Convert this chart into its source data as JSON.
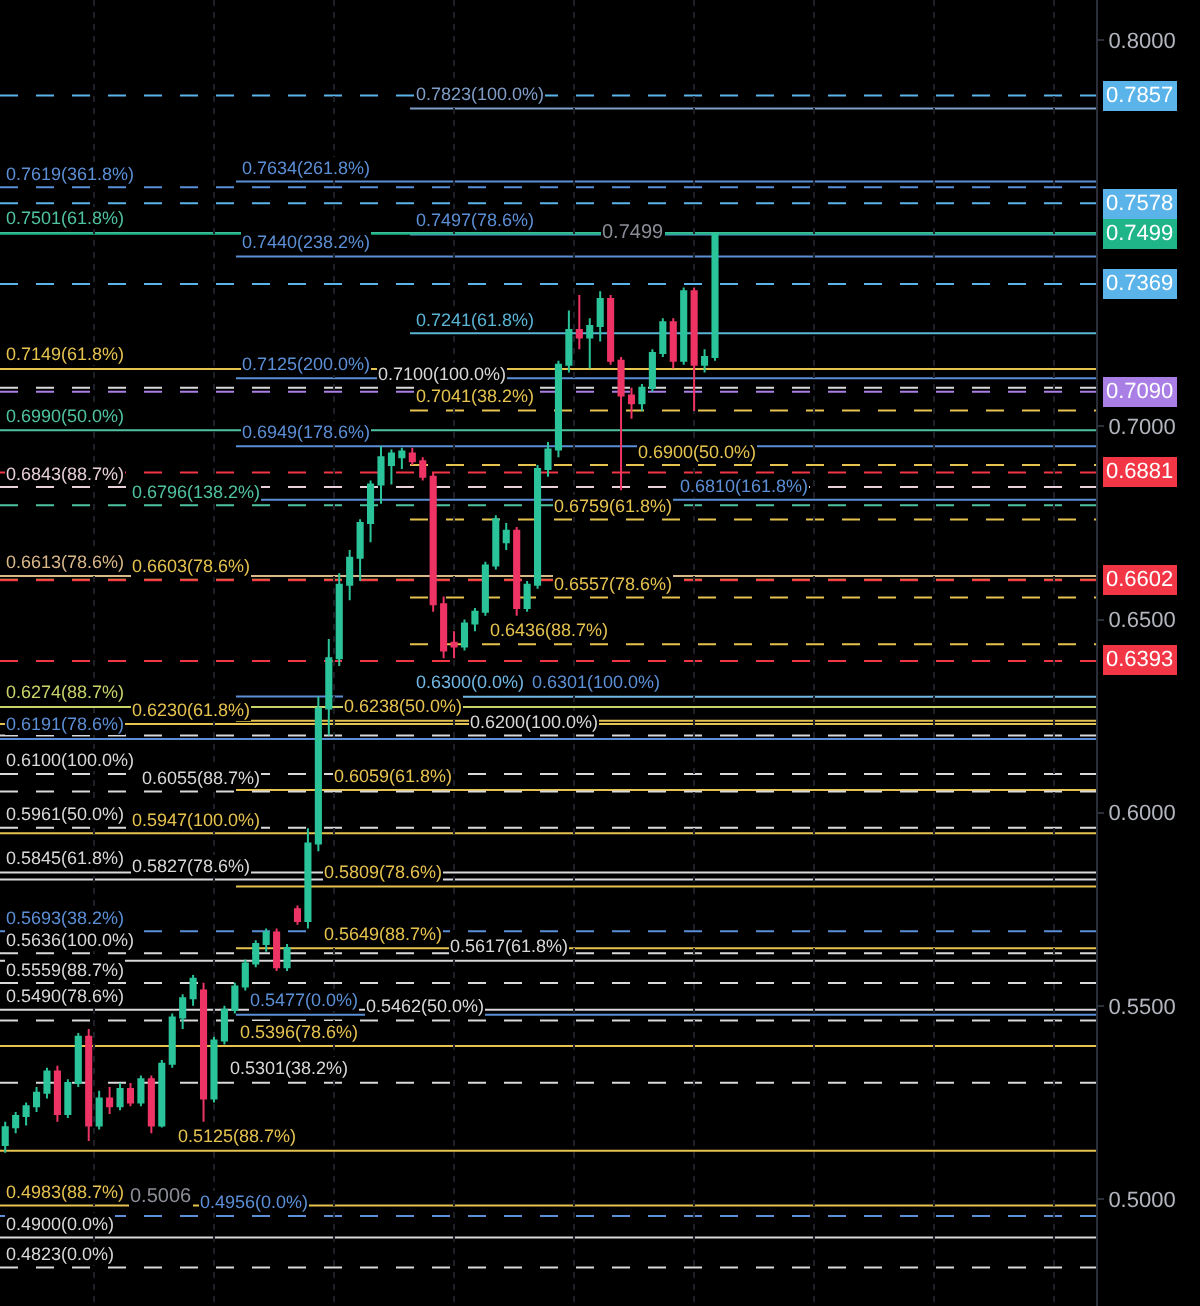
{
  "chart_data": {
    "type": "candlestick",
    "categories": [
      null,
      null,
      null,
      null,
      null,
      null,
      null,
      null,
      null,
      null,
      null,
      null,
      null,
      null,
      null,
      null,
      null,
      null,
      null,
      null,
      null,
      null,
      null,
      null,
      null,
      null,
      null,
      null,
      null,
      null,
      null,
      null,
      null,
      null,
      null,
      null,
      null,
      null,
      null,
      null,
      null,
      null,
      null,
      null,
      null,
      null,
      null,
      null,
      null,
      null,
      null,
      null,
      null,
      null,
      null,
      null,
      null,
      null,
      null,
      null,
      null,
      null,
      null,
      null,
      null,
      null,
      null,
      null,
      null,
      null,
      null,
      null,
      null,
      null,
      null,
      null,
      null,
      null,
      null,
      null,
      null,
      null,
      null,
      null,
      null,
      null,
      null,
      null,
      null,
      null,
      null,
      null,
      null,
      null,
      null,
      null,
      null,
      null,
      null,
      null,
      null,
      null,
      null,
      null,
      null
    ],
    "ohlc": [
      [
        0.514,
        0.52,
        0.512,
        0.5186
      ],
      [
        0.5186,
        0.5225,
        0.517,
        0.5215
      ],
      [
        0.5215,
        0.525,
        0.519,
        0.524
      ],
      [
        0.524,
        0.529,
        0.5225,
        0.5275
      ],
      [
        0.5275,
        0.534,
        0.526,
        0.533
      ],
      [
        0.533,
        0.5345,
        0.52,
        0.522
      ],
      [
        0.522,
        0.531,
        0.521,
        0.53
      ],
      [
        0.53,
        0.543,
        0.529,
        0.542
      ],
      [
        0.542,
        0.544,
        0.515,
        0.519
      ],
      [
        0.519,
        0.528,
        0.518,
        0.526
      ],
      [
        0.526,
        0.529,
        0.522,
        0.524
      ],
      [
        0.524,
        0.53,
        0.523,
        0.5285
      ],
      [
        0.5285,
        0.53,
        0.524,
        0.525
      ],
      [
        0.525,
        0.532,
        0.524,
        0.531
      ],
      [
        0.531,
        0.532,
        0.517,
        0.519
      ],
      [
        0.519,
        0.536,
        0.5185,
        0.535
      ],
      [
        0.535,
        0.548,
        0.534,
        0.547
      ],
      [
        0.547,
        0.553,
        0.544,
        0.552
      ],
      [
        0.552,
        0.558,
        0.55,
        0.557
      ],
      [
        0.554,
        0.556,
        0.52,
        0.526
      ],
      [
        0.526,
        0.542,
        0.525,
        0.541
      ],
      [
        0.541,
        0.55,
        0.54,
        0.549
      ],
      [
        0.549,
        0.556,
        0.548,
        0.555
      ],
      [
        0.555,
        0.562,
        0.554,
        0.561
      ],
      [
        0.561,
        0.567,
        0.56,
        0.566
      ],
      [
        0.566,
        0.57,
        0.564,
        0.569
      ],
      [
        0.569,
        0.57,
        0.559,
        0.56
      ],
      [
        0.56,
        0.566,
        0.559,
        0.565
      ],
      [
        0.575,
        0.576,
        0.571,
        0.572
      ],
      [
        0.572,
        0.596,
        0.57,
        0.592
      ],
      [
        0.592,
        0.63,
        0.59,
        0.627
      ],
      [
        0.627,
        0.645,
        0.62,
        0.64
      ],
      [
        0.64,
        0.662,
        0.638,
        0.659
      ],
      [
        0.659,
        0.668,
        0.655,
        0.666
      ],
      [
        0.666,
        0.676,
        0.66,
        0.675
      ],
      [
        0.675,
        0.686,
        0.67,
        0.685
      ],
      [
        0.685,
        0.6949,
        0.68,
        0.692
      ],
      [
        0.69,
        0.694,
        0.685,
        0.693
      ],
      [
        0.692,
        0.6945,
        0.689,
        0.6935
      ],
      [
        0.693,
        0.6945,
        0.69,
        0.691
      ],
      [
        0.691,
        0.692,
        0.686,
        0.687
      ],
      [
        0.687,
        0.688,
        0.652,
        0.654
      ],
      [
        0.654,
        0.656,
        0.64,
        0.642
      ],
      [
        0.644,
        0.647,
        0.64,
        0.643
      ],
      [
        0.643,
        0.65,
        0.642,
        0.649
      ],
      [
        0.649,
        0.653,
        0.647,
        0.652
      ],
      [
        0.652,
        0.665,
        0.651,
        0.664
      ],
      [
        0.664,
        0.677,
        0.663,
        0.676
      ],
      [
        0.67,
        0.675,
        0.668,
        0.673
      ],
      [
        0.673,
        0.674,
        0.651,
        0.653
      ],
      [
        0.653,
        0.66,
        0.652,
        0.659
      ],
      [
        0.659,
        0.69,
        0.658,
        0.689
      ],
      [
        0.689,
        0.696,
        0.687,
        0.694
      ],
      [
        0.694,
        0.717,
        0.692,
        0.716
      ],
      [
        0.716,
        0.73,
        0.714,
        0.725
      ],
      [
        0.725,
        0.734,
        0.72,
        0.723
      ],
      [
        0.723,
        0.728,
        0.715,
        0.726
      ],
      [
        0.726,
        0.735,
        0.722,
        0.733
      ],
      [
        0.733,
        0.734,
        0.716,
        0.717
      ],
      [
        0.717,
        0.718,
        0.6835,
        0.708
      ],
      [
        0.708,
        0.71,
        0.702,
        0.706
      ],
      [
        0.706,
        0.711,
        0.704,
        0.71
      ],
      [
        0.71,
        0.72,
        0.709,
        0.719
      ],
      [
        0.719,
        0.728,
        0.718,
        0.727
      ],
      [
        0.727,
        0.728,
        0.715,
        0.717
      ],
      [
        0.717,
        0.736,
        0.716,
        0.735
      ],
      [
        0.735,
        0.736,
        0.704,
        0.716
      ],
      [
        0.716,
        0.72,
        0.714,
        0.718
      ],
      [
        0.718,
        0.7499,
        0.717,
        0.7499
      ],
      null,
      null,
      null,
      null,
      null,
      null,
      null,
      null,
      null,
      null,
      null,
      null,
      null,
      null,
      null,
      null,
      null,
      null,
      null,
      null,
      null,
      null,
      null,
      null,
      null,
      null,
      null,
      null,
      null,
      null,
      null,
      null,
      null,
      null,
      null,
      null
    ],
    "colors": [
      "#2bc49a",
      "#2bc49a",
      "#2bc49a",
      "#2bc49a",
      "#2bc49a",
      "#ee3464",
      "#2bc49a",
      "#2bc49a",
      "#ee3464",
      "#2bc49a",
      "#ee3464",
      "#2bc49a",
      "#ee3464",
      "#2bc49a",
      "#ee3464",
      "#2bc49a",
      "#2bc49a",
      "#2bc49a",
      "#2bc49a",
      "#ee3464",
      "#2bc49a",
      "#2bc49a",
      "#2bc49a",
      "#2bc49a",
      "#2bc49a",
      "#2bc49a",
      "#ee3464",
      "#2bc49a",
      "#ee3464",
      "#2bc49a",
      "#2bc49a",
      "#2bc49a",
      "#2bc49a",
      "#2bc49a",
      "#2bc49a",
      "#2bc49a",
      "#2bc49a",
      "#2bc49a",
      "#2bc49a",
      "#ee3464",
      "#ee3464",
      "#ee3464",
      "#ee3464",
      "#ee3464",
      "#2bc49a",
      "#2bc49a",
      "#2bc49a",
      "#2bc49a",
      "#2bc49a",
      "#ee3464",
      "#2bc49a",
      "#2bc49a",
      "#2bc49a",
      "#2bc49a",
      "#2bc49a",
      "#ee3464",
      "#2bc49a",
      "#2bc49a",
      "#ee3464",
      "#ee3464",
      "#ee3464",
      "#2bc49a",
      "#2bc49a",
      "#2bc49a",
      "#ee3464",
      "#2bc49a",
      "#ee3464",
      "#2bc49a",
      "#2bc49a",
      null,
      null,
      null,
      null,
      null,
      null,
      null,
      null,
      null,
      null,
      null,
      null,
      null,
      null,
      null,
      null,
      null,
      null,
      null,
      null,
      null,
      null,
      null,
      null,
      null,
      null,
      null,
      null,
      null,
      null,
      null,
      null,
      null,
      null,
      null,
      null
    ],
    "ylim": [
      0.4723,
      0.8104
    ],
    "yticks": [
      {
        "value": 0.8,
        "label": "0.8000"
      },
      {
        "value": 0.7,
        "label": "0.7000"
      },
      {
        "value": 0.65,
        "label": "0.6500"
      },
      {
        "value": 0.6,
        "label": "0.6000"
      },
      {
        "value": 0.55,
        "label": "0.5500"
      },
      {
        "value": 0.5,
        "label": "0.5000"
      }
    ],
    "tick_labels": "y",
    "grid": "x",
    "ref_lines": [
      {
        "axis": "y",
        "value": 0.7619,
        "label": "0.7619(361.8%)",
        "color": "#5b8fd6",
        "line_style": "dashed"
      },
      {
        "axis": "y",
        "value": 0.7501,
        "label": "0.7501(61.8%)",
        "color": "#4fc3a1",
        "line_style": "solid"
      },
      {
        "axis": "y",
        "value": 0.7149,
        "label": "0.7149(61.8%)",
        "color": "#e6c34f",
        "line_style": "solid"
      },
      {
        "axis": "y",
        "value": 0.71,
        "label": "0.7100(100.0%)",
        "color": "#d9d9d9",
        "line_style": "dashed"
      },
      {
        "axis": "y",
        "value": 0.699,
        "label": "0.6990(50.0%)",
        "color": "#4fc3a1",
        "line_style": "solid"
      },
      {
        "axis": "y",
        "value": 0.6843,
        "label": "0.6843(88.7%)",
        "color": "#e8d0d8",
        "line_style": "dashed"
      },
      {
        "axis": "y",
        "value": 0.6796,
        "label": "0.6796(138.2%)",
        "color": "#4fc3a1",
        "line_style": "dashed"
      },
      {
        "axis": "y",
        "value": 0.6613,
        "label": "0.6613(78.6%)",
        "color": "#d9b88a",
        "line_style": "solid"
      },
      {
        "axis": "y",
        "value": 0.6603,
        "label": "0.6603(78.6%)",
        "color": "#e6c34f",
        "line_style": "dashed"
      },
      {
        "axis": "y",
        "value": 0.6274,
        "label": "0.6274(88.7%)",
        "color": "#c9d36a",
        "line_style": "solid"
      },
      {
        "axis": "y",
        "value": 0.623,
        "label": "0.6230(61.8%)",
        "color": "#e6c34f",
        "line_style": "solid"
      },
      {
        "axis": "y",
        "value": 0.62,
        "label": "0.6200(100.0%)",
        "color": "#d9d9d9",
        "line_style": "dashed"
      },
      {
        "axis": "y",
        "value": 0.6191,
        "label": "0.6191(78.6%)",
        "color": "#5b8fd6",
        "line_style": "solid"
      },
      {
        "axis": "y",
        "value": 0.61,
        "label": "0.6100(100.0%)",
        "color": "#d9d9d9",
        "line_style": "dashed"
      },
      {
        "axis": "y",
        "value": 0.6055,
        "label": "0.6055(88.7%)",
        "color": "#d9d9d9",
        "line_style": "dashed"
      },
      {
        "axis": "y",
        "value": 0.5961,
        "label": "0.5961(50.0%)",
        "color": "#d9d9d9",
        "line_style": "dashed"
      },
      {
        "axis": "y",
        "value": 0.5947,
        "label": "0.5947(100.0%)",
        "color": "#e6c34f",
        "line_style": "solid"
      },
      {
        "axis": "y",
        "value": 0.5845,
        "label": "0.5845(61.8%)",
        "color": "#d9d9d9",
        "line_style": "solid"
      },
      {
        "axis": "y",
        "value": 0.5827,
        "label": "0.5827(78.6%)",
        "color": "#d9d9d9",
        "line_style": "solid"
      },
      {
        "axis": "y",
        "value": 0.5693,
        "label": "0.5693(38.2%)",
        "color": "#5b8fd6",
        "line_style": "dashed"
      },
      {
        "axis": "y",
        "value": 0.5636,
        "label": "0.5636(100.0%)",
        "color": "#d9d9d9",
        "line_style": "dashed"
      },
      {
        "axis": "y",
        "value": 0.5617,
        "label": "0.5617(61.8%)",
        "color": "#d9d9d9",
        "line_style": "solid"
      },
      {
        "axis": "y",
        "value": 0.5559,
        "label": "0.5559(88.7%)",
        "color": "#d9d9d9",
        "line_style": "dashed"
      },
      {
        "axis": "y",
        "value": 0.549,
        "label": "0.5490(78.6%)",
        "color": "#d9d9d9",
        "line_style": "solid"
      },
      {
        "axis": "y",
        "value": 0.5462,
        "label": "0.5462(50.0%)",
        "color": "#d9d9d9",
        "line_style": "dashed"
      },
      {
        "axis": "y",
        "value": 0.5396,
        "label": "0.5396(78.6%)",
        "color": "#e6c34f",
        "line_style": "solid"
      },
      {
        "axis": "y",
        "value": 0.5301,
        "label": "0.5301(38.2%)",
        "color": "#d9d9d9",
        "line_style": "dashed"
      },
      {
        "axis": "y",
        "value": 0.5125,
        "label": "0.5125(88.7%)",
        "color": "#e6c34f",
        "line_style": "solid"
      },
      {
        "axis": "y",
        "value": 0.4983,
        "label": "0.4983(88.7%)",
        "color": "#e6c34f",
        "line_style": "solid"
      },
      {
        "axis": "y",
        "value": 0.4956,
        "label": "0.4956(0.0%)",
        "color": "#5b8fd6",
        "line_style": "dashed"
      },
      {
        "axis": "y",
        "value": 0.49,
        "label": "0.4900(0.0%)",
        "color": "#d9d9d9",
        "line_style": "solid"
      },
      {
        "axis": "y",
        "value": 0.4823,
        "label": "0.4823(0.0%)",
        "color": "#d9d9d9",
        "line_style": "dashed"
      },
      {
        "axis": "y",
        "value": 0.7634,
        "label": "0.7634(261.8%)",
        "color": "#5b8fd6",
        "line_style": "solid"
      },
      {
        "axis": "y",
        "value": 0.744,
        "label": "0.7440(238.2%)",
        "color": "#5b8fd6",
        "line_style": "solid"
      },
      {
        "axis": "y",
        "value": 0.7125,
        "label": "0.7125(200.0%)",
        "color": "#5b8fd6",
        "line_style": "solid"
      },
      {
        "axis": "y",
        "value": 0.6949,
        "label": "0.6949(178.6%)",
        "color": "#5b8fd6",
        "line_style": "solid"
      },
      {
        "axis": "y",
        "value": 0.681,
        "label": "0.6810(161.8%)",
        "color": "#5b8fd6",
        "line_style": "solid"
      },
      {
        "axis": "y",
        "value": 0.6301,
        "label": "0.6301(100.0%)",
        "color": "#5b8fd6",
        "line_style": "solid"
      },
      {
        "axis": "y",
        "value": 0.6238,
        "label": "0.6238(50.0%)",
        "color": "#e6c34f",
        "line_style": "solid"
      },
      {
        "axis": "y",
        "value": 0.6059,
        "label": "0.6059(61.8%)",
        "color": "#e6c34f",
        "line_style": "solid"
      },
      {
        "axis": "y",
        "value": 0.5809,
        "label": "0.5809(78.6%)",
        "color": "#e6c34f",
        "line_style": "solid"
      },
      {
        "axis": "y",
        "value": 0.5649,
        "label": "0.5649(88.7%)",
        "color": "#e6c34f",
        "line_style": "solid"
      },
      {
        "axis": "y",
        "value": 0.5477,
        "label": "0.5477(0.0%)",
        "color": "#5b8fd6",
        "line_style": "solid"
      },
      {
        "axis": "y",
        "value": 0.7823,
        "label": "0.7823(100.0%)",
        "color": "#7f9fc8",
        "line_style": "solid"
      },
      {
        "axis": "y",
        "value": 0.7497,
        "label": "0.7497(78.6%)",
        "color": "#5b8fd6",
        "line_style": "solid"
      },
      {
        "axis": "y",
        "value": 0.7241,
        "label": "0.7241(61.8%)",
        "color": "#5bb5d6",
        "line_style": "solid"
      },
      {
        "axis": "y",
        "value": 0.7041,
        "label": "0.7041(38.2%)",
        "color": "#e6c34f",
        "line_style": "dashed"
      },
      {
        "axis": "y",
        "value": 0.69,
        "label": "0.6900(50.0%)",
        "color": "#e6c34f",
        "line_style": "dashed"
      },
      {
        "axis": "y",
        "value": 0.6759,
        "label": "0.6759(61.8%)",
        "color": "#e6c34f",
        "line_style": "dashed"
      },
      {
        "axis": "y",
        "value": 0.6557,
        "label": "0.6557(78.6%)",
        "color": "#e6c34f",
        "line_style": "dashed"
      },
      {
        "axis": "y",
        "value": 0.6436,
        "label": "0.6436(88.7%)",
        "color": "#e6c34f",
        "line_style": "dashed"
      },
      {
        "axis": "y",
        "value": 0.63,
        "label": "0.6300(0.0%)",
        "color": "#72b8e4",
        "line_style": "solid"
      },
      {
        "axis": "y",
        "value": 0.7857,
        "label": "0.7857",
        "color": "#5ab4ea",
        "line_style": "dashed"
      },
      {
        "axis": "y",
        "value": 0.7578,
        "label": "0.7578",
        "color": "#5ab4ea",
        "line_style": "dashed"
      },
      {
        "axis": "y",
        "value": 0.7499,
        "label": "0.7499",
        "color": "#1fb589",
        "line_style": "solid"
      },
      {
        "axis": "y",
        "value": 0.7369,
        "label": "0.7369",
        "color": "#5ab4ea",
        "line_style": "dashed"
      },
      {
        "axis": "y",
        "value": 0.709,
        "label": "0.7090",
        "color": "#a97fe6",
        "line_style": "dashed"
      },
      {
        "axis": "y",
        "value": 0.6881,
        "label": "0.6881",
        "color": "#f23645",
        "line_style": "dashed"
      },
      {
        "axis": "y",
        "value": 0.6602,
        "label": "0.6602",
        "color": "#f23645",
        "line_style": "dashed"
      },
      {
        "axis": "y",
        "value": 0.6393,
        "label": "0.6393",
        "color": "#f23645",
        "line_style": "dashed"
      }
    ],
    "annotations": [
      {
        "text": "0.7499",
        "y": 0.7499
      },
      {
        "text": "0.5006",
        "y": 0.5006
      }
    ]
  }
}
